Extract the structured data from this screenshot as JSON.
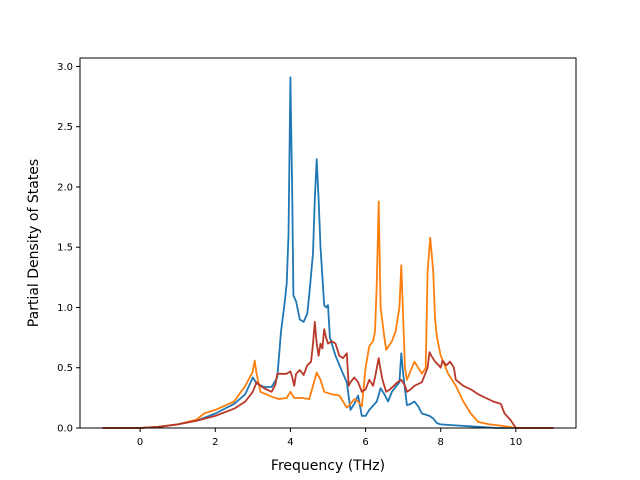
{
  "chart_data": {
    "type": "line",
    "title": "",
    "xlabel": "Frequency (THz)",
    "ylabel": "Partial Density of States",
    "xlim": [
      -1.6,
      11.6
    ],
    "ylim": [
      0,
      3.07
    ],
    "xticks": [
      0,
      2,
      4,
      6,
      8,
      10
    ],
    "yticks": [
      0.0,
      0.5,
      1.0,
      1.5,
      2.0,
      2.5,
      3.0
    ],
    "xtick_labels": [
      "0",
      "2",
      "4",
      "6",
      "8",
      "10"
    ],
    "ytick_labels": [
      "0.0",
      "0.5",
      "1.0",
      "1.5",
      "2.0",
      "2.5",
      "3.0"
    ],
    "grid": false,
    "legend": "none",
    "series": [
      {
        "color": "#1f77b4",
        "points": [
          [
            -1,
            0
          ],
          [
            0,
            0
          ],
          [
            0.5,
            0.01
          ],
          [
            1,
            0.03
          ],
          [
            1.5,
            0.06
          ],
          [
            2,
            0.12
          ],
          [
            2.5,
            0.2
          ],
          [
            2.8,
            0.28
          ],
          [
            3.0,
            0.42
          ],
          [
            3.1,
            0.37
          ],
          [
            3.3,
            0.34
          ],
          [
            3.5,
            0.34
          ],
          [
            3.65,
            0.42
          ],
          [
            3.75,
            0.8
          ],
          [
            3.85,
            1.05
          ],
          [
            3.9,
            1.2
          ],
          [
            3.95,
            1.6
          ],
          [
            4.0,
            2.91
          ],
          [
            4.05,
            1.9
          ],
          [
            4.08,
            1.1
          ],
          [
            4.15,
            1.05
          ],
          [
            4.25,
            0.9
          ],
          [
            4.35,
            0.88
          ],
          [
            4.45,
            0.95
          ],
          [
            4.5,
            1.1
          ],
          [
            4.6,
            1.45
          ],
          [
            4.65,
            1.9
          ],
          [
            4.7,
            2.23
          ],
          [
            4.75,
            1.9
          ],
          [
            4.8,
            1.5
          ],
          [
            4.9,
            1.02
          ],
          [
            4.95,
            1.0
          ],
          [
            5.0,
            1.02
          ],
          [
            5.05,
            0.75
          ],
          [
            5.2,
            0.6
          ],
          [
            5.4,
            0.45
          ],
          [
            5.5,
            0.38
          ],
          [
            5.6,
            0.15
          ],
          [
            5.7,
            0.2
          ],
          [
            5.8,
            0.27
          ],
          [
            5.9,
            0.1
          ],
          [
            6.0,
            0.1
          ],
          [
            6.1,
            0.15
          ],
          [
            6.3,
            0.22
          ],
          [
            6.4,
            0.33
          ],
          [
            6.5,
            0.28
          ],
          [
            6.6,
            0.22
          ],
          [
            6.7,
            0.3
          ],
          [
            6.9,
            0.38
          ],
          [
            6.95,
            0.62
          ],
          [
            7.0,
            0.45
          ],
          [
            7.1,
            0.19
          ],
          [
            7.2,
            0.2
          ],
          [
            7.3,
            0.22
          ],
          [
            7.4,
            0.18
          ],
          [
            7.5,
            0.12
          ],
          [
            7.7,
            0.1
          ],
          [
            7.8,
            0.08
          ],
          [
            7.9,
            0.04
          ],
          [
            8.0,
            0.03
          ],
          [
            8.5,
            0.02
          ],
          [
            9,
            0.01
          ],
          [
            9.5,
            0.0
          ],
          [
            10,
            0
          ],
          [
            11,
            0
          ]
        ]
      },
      {
        "color": "#ff7f0e",
        "points": [
          [
            -1,
            0
          ],
          [
            0,
            0
          ],
          [
            0.5,
            0.01
          ],
          [
            1,
            0.03
          ],
          [
            1.5,
            0.07
          ],
          [
            1.7,
            0.12
          ],
          [
            2,
            0.15
          ],
          [
            2.5,
            0.22
          ],
          [
            2.8,
            0.35
          ],
          [
            3.0,
            0.47
          ],
          [
            3.05,
            0.56
          ],
          [
            3.1,
            0.45
          ],
          [
            3.2,
            0.3
          ],
          [
            3.5,
            0.26
          ],
          [
            3.7,
            0.24
          ],
          [
            3.9,
            0.25
          ],
          [
            4.0,
            0.3
          ],
          [
            4.1,
            0.25
          ],
          [
            4.3,
            0.25
          ],
          [
            4.5,
            0.24
          ],
          [
            4.6,
            0.35
          ],
          [
            4.7,
            0.46
          ],
          [
            4.8,
            0.4
          ],
          [
            4.9,
            0.3
          ],
          [
            5.1,
            0.28
          ],
          [
            5.3,
            0.27
          ],
          [
            5.4,
            0.22
          ],
          [
            5.5,
            0.17
          ],
          [
            5.6,
            0.2
          ],
          [
            5.7,
            0.24
          ],
          [
            5.8,
            0.22
          ],
          [
            5.9,
            0.18
          ],
          [
            6.0,
            0.5
          ],
          [
            6.1,
            0.68
          ],
          [
            6.2,
            0.72
          ],
          [
            6.25,
            0.8
          ],
          [
            6.3,
            1.2
          ],
          [
            6.35,
            1.88
          ],
          [
            6.4,
            1.0
          ],
          [
            6.5,
            0.75
          ],
          [
            6.55,
            0.65
          ],
          [
            6.7,
            0.72
          ],
          [
            6.8,
            0.8
          ],
          [
            6.9,
            1.0
          ],
          [
            6.95,
            1.35
          ],
          [
            7.0,
            0.9
          ],
          [
            7.05,
            0.5
          ],
          [
            7.1,
            0.4
          ],
          [
            7.3,
            0.55
          ],
          [
            7.4,
            0.5
          ],
          [
            7.5,
            0.45
          ],
          [
            7.6,
            0.5
          ],
          [
            7.65,
            1.3
          ],
          [
            7.72,
            1.58
          ],
          [
            7.8,
            1.3
          ],
          [
            7.85,
            0.9
          ],
          [
            7.9,
            0.75
          ],
          [
            8.0,
            0.6
          ],
          [
            8.2,
            0.45
          ],
          [
            8.4,
            0.35
          ],
          [
            8.6,
            0.22
          ],
          [
            8.8,
            0.12
          ],
          [
            9.0,
            0.05
          ],
          [
            9.3,
            0.03
          ],
          [
            9.6,
            0.02
          ],
          [
            10,
            0
          ],
          [
            11,
            0
          ]
        ]
      },
      {
        "color": "#b8392a",
        "points": [
          [
            -1,
            0
          ],
          [
            0,
            0
          ],
          [
            0.5,
            0.01
          ],
          [
            1,
            0.03
          ],
          [
            1.5,
            0.06
          ],
          [
            2,
            0.1
          ],
          [
            2.5,
            0.16
          ],
          [
            2.8,
            0.22
          ],
          [
            3.0,
            0.3
          ],
          [
            3.1,
            0.38
          ],
          [
            3.2,
            0.35
          ],
          [
            3.3,
            0.33
          ],
          [
            3.5,
            0.3
          ],
          [
            3.6,
            0.36
          ],
          [
            3.65,
            0.45
          ],
          [
            3.8,
            0.45
          ],
          [
            3.9,
            0.45
          ],
          [
            4.0,
            0.47
          ],
          [
            4.05,
            0.42
          ],
          [
            4.1,
            0.35
          ],
          [
            4.15,
            0.45
          ],
          [
            4.25,
            0.48
          ],
          [
            4.35,
            0.44
          ],
          [
            4.45,
            0.52
          ],
          [
            4.55,
            0.55
          ],
          [
            4.6,
            0.7
          ],
          [
            4.65,
            0.88
          ],
          [
            4.7,
            0.7
          ],
          [
            4.75,
            0.6
          ],
          [
            4.8,
            0.7
          ],
          [
            4.85,
            0.66
          ],
          [
            4.9,
            0.82
          ],
          [
            4.95,
            0.75
          ],
          [
            5.0,
            0.7
          ],
          [
            5.1,
            0.72
          ],
          [
            5.2,
            0.7
          ],
          [
            5.3,
            0.6
          ],
          [
            5.4,
            0.58
          ],
          [
            5.5,
            0.62
          ],
          [
            5.55,
            0.35
          ],
          [
            5.6,
            0.38
          ],
          [
            5.7,
            0.42
          ],
          [
            5.8,
            0.38
          ],
          [
            5.9,
            0.3
          ],
          [
            6.0,
            0.32
          ],
          [
            6.1,
            0.4
          ],
          [
            6.2,
            0.35
          ],
          [
            6.25,
            0.42
          ],
          [
            6.35,
            0.58
          ],
          [
            6.4,
            0.48
          ],
          [
            6.45,
            0.4
          ],
          [
            6.55,
            0.3
          ],
          [
            6.65,
            0.32
          ],
          [
            6.75,
            0.35
          ],
          [
            6.85,
            0.38
          ],
          [
            6.95,
            0.4
          ],
          [
            7.05,
            0.35
          ],
          [
            7.1,
            0.3
          ],
          [
            7.2,
            0.32
          ],
          [
            7.3,
            0.35
          ],
          [
            7.5,
            0.38
          ],
          [
            7.65,
            0.5
          ],
          [
            7.7,
            0.63
          ],
          [
            7.75,
            0.6
          ],
          [
            7.85,
            0.55
          ],
          [
            7.95,
            0.52
          ],
          [
            8.0,
            0.5
          ],
          [
            8.05,
            0.56
          ],
          [
            8.15,
            0.52
          ],
          [
            8.25,
            0.55
          ],
          [
            8.35,
            0.5
          ],
          [
            8.4,
            0.4
          ],
          [
            8.6,
            0.35
          ],
          [
            8.8,
            0.32
          ],
          [
            9.0,
            0.28
          ],
          [
            9.2,
            0.25
          ],
          [
            9.4,
            0.22
          ],
          [
            9.6,
            0.2
          ],
          [
            9.7,
            0.12
          ],
          [
            9.85,
            0.07
          ],
          [
            10.0,
            0.0
          ],
          [
            11,
            0
          ]
        ]
      }
    ]
  }
}
